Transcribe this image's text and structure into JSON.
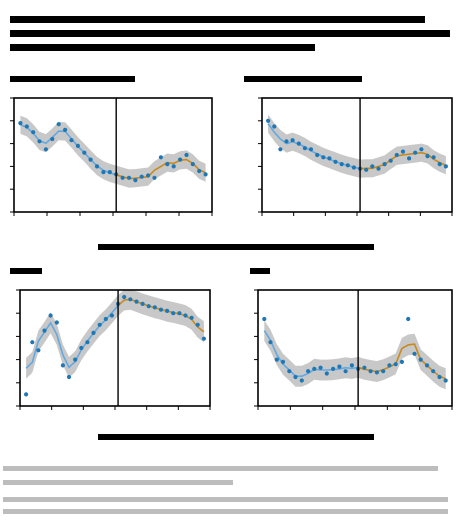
{
  "chart_data": [
    {
      "type": "line",
      "panel": "top-left",
      "title": "",
      "xlabel": "",
      "ylabel": "",
      "x": [
        1,
        2,
        3,
        4,
        5,
        6,
        7,
        8,
        9,
        10,
        11,
        12,
        13,
        14,
        15,
        16,
        17,
        18,
        19,
        20,
        21,
        22,
        23,
        24,
        25,
        26,
        27,
        28,
        29,
        30
      ],
      "xlim": [
        0,
        31
      ],
      "ylim": [
        0,
        1
      ],
      "vline_x": 16,
      "series": [
        {
          "name": "",
          "values": [
            0.78,
            0.75,
            0.7,
            0.62,
            0.55,
            0.64,
            0.77,
            0.72,
            0.63,
            0.58,
            0.52,
            0.46,
            0.4,
            0.35,
            0.35,
            0.33,
            0.3,
            0.3,
            0.28,
            0.31,
            0.32,
            0.3,
            0.48,
            0.42,
            0.4,
            0.46,
            0.5,
            0.42,
            0.36,
            0.33
          ]
        }
      ],
      "ci_width": 0.08
    },
    {
      "type": "line",
      "panel": "top-right",
      "title": "",
      "xlabel": "",
      "ylabel": "",
      "x": [
        1,
        2,
        3,
        4,
        5,
        6,
        7,
        8,
        9,
        10,
        11,
        12,
        13,
        14,
        15,
        16,
        17,
        18,
        19,
        20,
        21,
        22,
        23,
        24,
        25,
        26,
        27,
        28,
        29,
        30
      ],
      "xlim": [
        0,
        31
      ],
      "ylim": [
        0,
        1
      ],
      "vline_x": 16,
      "series": [
        {
          "name": "",
          "values": [
            0.8,
            0.75,
            0.55,
            0.62,
            0.63,
            0.6,
            0.56,
            0.55,
            0.5,
            0.48,
            0.47,
            0.44,
            0.42,
            0.41,
            0.39,
            0.38,
            0.37,
            0.4,
            0.38,
            0.42,
            0.45,
            0.5,
            0.53,
            0.47,
            0.52,
            0.55,
            0.49,
            0.48,
            0.42,
            0.4
          ]
        }
      ],
      "ci_width": 0.08
    },
    {
      "type": "line",
      "panel": "bottom-left",
      "title": "",
      "xlabel": "",
      "ylabel": "",
      "x": [
        1,
        2,
        3,
        4,
        5,
        6,
        7,
        8,
        9,
        10,
        11,
        12,
        13,
        14,
        15,
        16,
        17,
        18,
        19,
        20,
        21,
        22,
        23,
        24,
        25,
        26,
        27,
        28,
        29,
        30
      ],
      "xlim": [
        0,
        31
      ],
      "ylim": [
        0,
        1
      ],
      "vline_x": 16,
      "series": [
        {
          "name": "",
          "values": [
            0.1,
            0.55,
            0.48,
            0.65,
            0.78,
            0.72,
            0.35,
            0.25,
            0.4,
            0.5,
            0.55,
            0.63,
            0.7,
            0.75,
            0.78,
            0.88,
            0.94,
            0.92,
            0.9,
            0.88,
            0.86,
            0.85,
            0.83,
            0.82,
            0.8,
            0.8,
            0.78,
            0.76,
            0.7,
            0.58
          ]
        }
      ],
      "ci_width": 0.09
    },
    {
      "type": "line",
      "panel": "bottom-right",
      "title": "",
      "xlabel": "",
      "ylabel": "",
      "x": [
        1,
        2,
        3,
        4,
        5,
        6,
        7,
        8,
        9,
        10,
        11,
        12,
        13,
        14,
        15,
        16,
        17,
        18,
        19,
        20,
        21,
        22,
        23,
        24,
        25,
        26,
        27,
        28,
        29,
        30
      ],
      "xlim": [
        0,
        31
      ],
      "ylim": [
        0,
        1
      ],
      "vline_x": 16,
      "series": [
        {
          "name": "",
          "values": [
            0.75,
            0.55,
            0.4,
            0.38,
            0.3,
            0.25,
            0.22,
            0.3,
            0.32,
            0.33,
            0.28,
            0.32,
            0.34,
            0.3,
            0.35,
            0.32,
            0.33,
            0.3,
            0.29,
            0.3,
            0.35,
            0.36,
            0.38,
            0.75,
            0.45,
            0.4,
            0.35,
            0.3,
            0.25,
            0.22
          ]
        }
      ],
      "ci_width": 0.09
    }
  ],
  "colors": {
    "points": "#1f77b4",
    "fit_pre": "#64a8e0",
    "fit_post": "#c88a1e",
    "ci_band": "#c8c8c8",
    "axis": "#000000",
    "caption_gray": "#bdbdbd"
  }
}
